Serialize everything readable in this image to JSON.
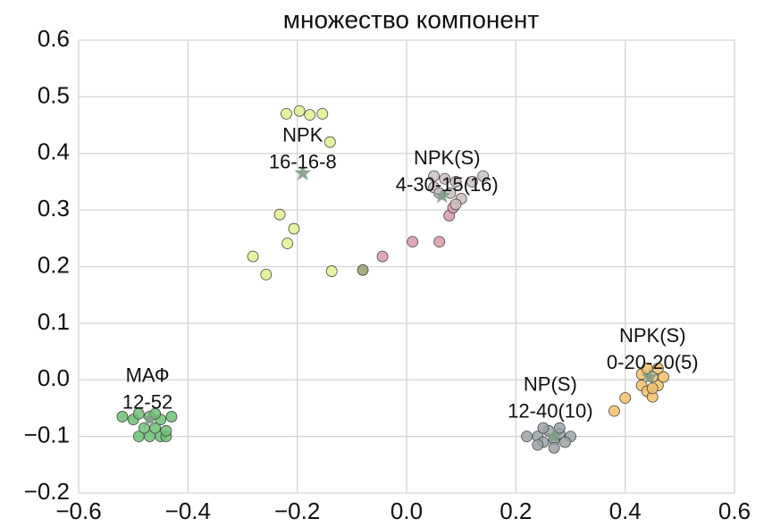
{
  "chart_data": {
    "type": "scatter",
    "title": "множество компонент",
    "xlim": [
      -0.6,
      0.6
    ],
    "ylim": [
      -0.2,
      0.6
    ],
    "xticks": [
      {
        "value": -0.6,
        "label": "−0.6"
      },
      {
        "value": -0.4,
        "label": "−0.4"
      },
      {
        "value": -0.2,
        "label": "−0.2"
      },
      {
        "value": 0,
        "label": "0.0"
      },
      0.2,
      0.4,
      0.6
    ],
    "yticks": [
      {
        "value": -0.2,
        "label": "−0.2"
      },
      {
        "value": -0.1,
        "label": "−0.1"
      },
      {
        "value": 0,
        "label": "0.0"
      },
      0.1,
      0.2,
      0.3,
      0.4,
      0.5,
      0.6
    ],
    "grid": true,
    "series": [
      {
        "color": "#e3f08f",
        "x": [
          -0.22,
          -0.196,
          -0.177,
          -0.154,
          -0.14,
          -0.232,
          -0.206,
          -0.218,
          -0.281,
          -0.257,
          -0.137
        ],
        "values": [
          0.47,
          0.475,
          0.468,
          0.47,
          0.42,
          0.292,
          0.267,
          0.241,
          0.218,
          0.186,
          0.192
        ]
      },
      {
        "color": "#9b9b6e",
        "x": [
          -0.08
        ],
        "values": [
          0.194
        ]
      },
      {
        "color": "#d79aa4",
        "x": [
          -0.044,
          0.011,
          0.06,
          0.078,
          0.085
        ],
        "values": [
          0.218,
          0.244,
          0.244,
          0.29,
          0.304
        ]
      },
      {
        "color": "#cdbfbf",
        "x": [
          0.05,
          0.07,
          0.09,
          0.12,
          0.14,
          0.05,
          0.08,
          0.1,
          0.06,
          0.09
        ],
        "values": [
          0.36,
          0.355,
          0.35,
          0.35,
          0.36,
          0.34,
          0.33,
          0.32,
          0.33,
          0.31
        ]
      },
      {
        "color": "#6dbf73",
        "x": [
          -0.49,
          -0.47,
          -0.45,
          -0.44,
          -0.48,
          -0.46,
          -0.44,
          -0.5,
          -0.47,
          -0.45,
          -0.52,
          -0.43,
          -0.49,
          -0.46
        ],
        "values": [
          -0.1,
          -0.1,
          -0.1,
          -0.1,
          -0.085,
          -0.085,
          -0.09,
          -0.07,
          -0.065,
          -0.07,
          -0.065,
          -0.065,
          -0.06,
          -0.06
        ]
      },
      {
        "color": "#9aa3a8",
        "x": [
          0.22,
          0.24,
          0.25,
          0.27,
          0.28,
          0.3,
          0.26,
          0.24,
          0.27,
          0.29,
          0.25,
          0.28
        ],
        "values": [
          -0.1,
          -0.1,
          -0.11,
          -0.105,
          -0.095,
          -0.1,
          -0.09,
          -0.115,
          -0.12,
          -0.11,
          -0.085,
          -0.085
        ]
      },
      {
        "color": "#f5c26b",
        "x": [
          0.38,
          0.4,
          0.43,
          0.44,
          0.45,
          0.46,
          0.45,
          0.47,
          0.43,
          0.44,
          0.46,
          0.45
        ],
        "values": [
          -0.055,
          -0.032,
          -0.01,
          -0.02,
          -0.03,
          -0.01,
          0.005,
          0.005,
          0.01,
          0.02,
          0.02,
          -0.015
        ]
      }
    ],
    "centroids": {
      "color": "#7f9c86",
      "x": [
        -0.19,
        0.065,
        -0.47,
        0.27,
        0.445
      ],
      "values": [
        0.365,
        0.325,
        -0.07,
        -0.1,
        0.005
      ]
    },
    "annotations": [
      {
        "lines": [
          "NPK",
          "16-16-8"
        ],
        "x": -0.19,
        "y": 0.43
      },
      {
        "lines": [
          "NPK(S)",
          "4-30-15(16)"
        ],
        "x": 0.074,
        "y": 0.39
      },
      {
        "lines": [
          "МАФ",
          "12-52"
        ],
        "x": -0.474,
        "y": 0.006
      },
      {
        "lines": [
          "NP(S)",
          "12-40(10)"
        ],
        "x": 0.263,
        "y": -0.01
      },
      {
        "lines": [
          "NPK(S)",
          "0-20-20(5)"
        ],
        "x": 0.45,
        "y": 0.076
      }
    ]
  }
}
